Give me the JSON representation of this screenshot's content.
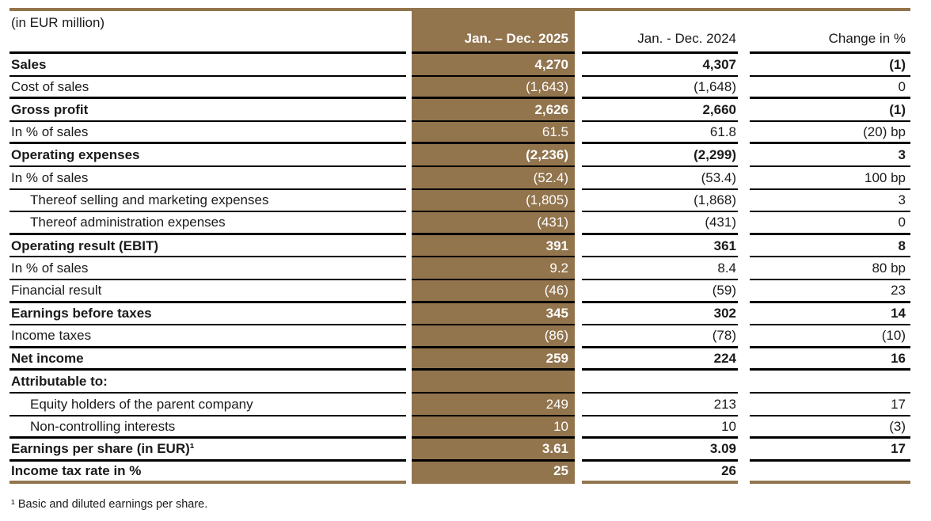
{
  "meta": {
    "unit_label": "(in EUR million)",
    "footnote": "¹ Basic and diluted earnings per share."
  },
  "colors": {
    "accent_brown": "#92744D",
    "separator_black": "#000000",
    "text": "#1A1A1A",
    "col_2025_text": "#FFFFFF"
  },
  "columns": {
    "col_2025": "Jan. – Dec. 2025",
    "col_2024": "Jan. - Dec. 2024",
    "change": "Change in %"
  },
  "rows": [
    {
      "label": "Sales",
      "v2025": "4,270",
      "v2024": "4,307",
      "change": "(1)",
      "bold": true,
      "indent": false,
      "sep": "thin"
    },
    {
      "label": "Cost of sales",
      "v2025": "(1,643)",
      "v2024": "(1,648)",
      "change": "0",
      "bold": false,
      "indent": false,
      "sep": "thick"
    },
    {
      "label": "Gross profit",
      "v2025": "2,626",
      "v2024": "2,660",
      "change": "(1)",
      "bold": true,
      "indent": false,
      "sep": "thin"
    },
    {
      "label": "In % of sales",
      "v2025": "61.5",
      "v2024": "61.8",
      "change": "(20) bp",
      "bold": false,
      "indent": false,
      "sep": "thick"
    },
    {
      "label": "Operating expenses",
      "v2025": "(2,236)",
      "v2024": "(2,299)",
      "change": "3",
      "bold": true,
      "indent": false,
      "sep": "thin"
    },
    {
      "label": "In % of sales",
      "v2025": "(52.4)",
      "v2024": "(53.4)",
      "change": "100 bp",
      "bold": false,
      "indent": false,
      "sep": "thin"
    },
    {
      "label": "Thereof selling and marketing expenses",
      "v2025": "(1,805)",
      "v2024": "(1,868)",
      "change": "3",
      "bold": false,
      "indent": true,
      "sep": "thin"
    },
    {
      "label": "Thereof administration expenses",
      "v2025": "(431)",
      "v2024": "(431)",
      "change": "0",
      "bold": false,
      "indent": true,
      "sep": "thick"
    },
    {
      "label": "Operating result (EBIT)",
      "v2025": "391",
      "v2024": "361",
      "change": "8",
      "bold": true,
      "indent": false,
      "sep": "thin"
    },
    {
      "label": "In % of sales",
      "v2025": "9.2",
      "v2024": "8.4",
      "change": "80 bp",
      "bold": false,
      "indent": false,
      "sep": "thin"
    },
    {
      "label": "Financial result",
      "v2025": "(46)",
      "v2024": "(59)",
      "change": "23",
      "bold": false,
      "indent": false,
      "sep": "thick"
    },
    {
      "label": "Earnings before taxes",
      "v2025": "345",
      "v2024": "302",
      "change": "14",
      "bold": true,
      "indent": false,
      "sep": "thin"
    },
    {
      "label": "Income taxes",
      "v2025": "(86)",
      "v2024": "(78)",
      "change": "(10)",
      "bold": false,
      "indent": false,
      "sep": "thick"
    },
    {
      "label": "Net income",
      "v2025": "259",
      "v2024": "224",
      "change": "16",
      "bold": true,
      "indent": false,
      "sep": "thick"
    },
    {
      "label": "Attributable to:",
      "v2025": "",
      "v2024": "",
      "change": "",
      "bold": true,
      "indent": false,
      "sep": "thin"
    },
    {
      "label": "Equity holders of the parent company",
      "v2025": "249",
      "v2024": "213",
      "change": "17",
      "bold": false,
      "indent": true,
      "sep": "thin"
    },
    {
      "label": "Non-controlling interests",
      "v2025": "10",
      "v2024": "10",
      "change": "(3)",
      "bold": false,
      "indent": true,
      "sep": "thick"
    },
    {
      "label": "Earnings per share (in EUR)¹",
      "v2025": "3.61",
      "v2024": "3.09",
      "change": "17",
      "bold": true,
      "indent": false,
      "sep": "thick"
    },
    {
      "label": "Income tax rate in %",
      "v2025": "25",
      "v2024": "26",
      "change": "",
      "bold": true,
      "indent": false,
      "sep": "brown"
    }
  ]
}
